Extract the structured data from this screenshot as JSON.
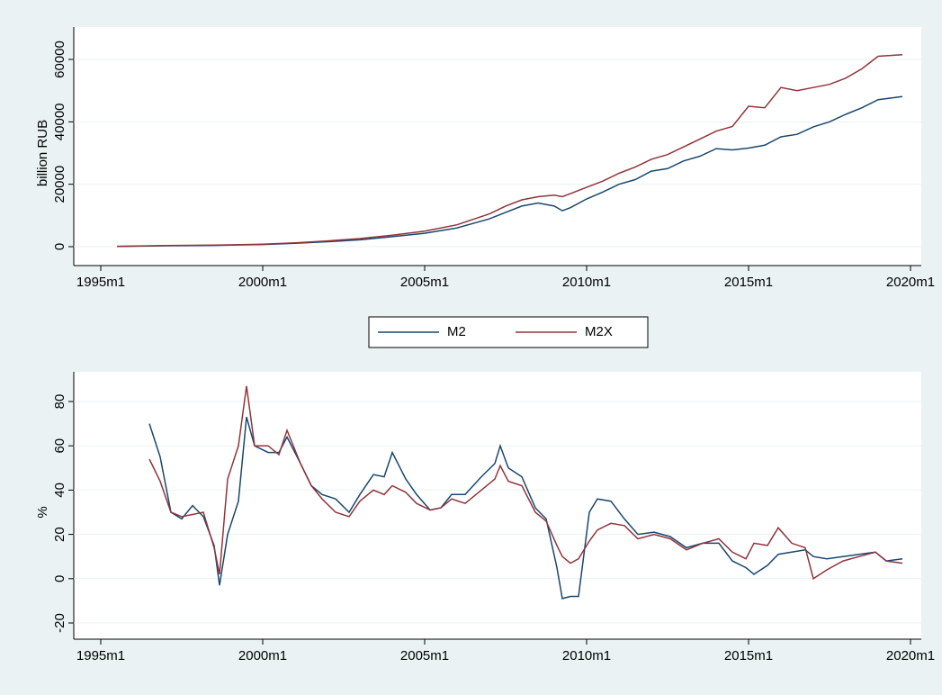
{
  "chart_data": [
    {
      "type": "line",
      "ylabel": "billion RUB",
      "x": [
        "1995m7",
        "1997m1",
        "1998m7",
        "2000m1",
        "2001m1",
        "2002m1",
        "2003m1",
        "2004m1",
        "2005m1",
        "2006m1",
        "2007m1",
        "2007m7",
        "2008m1",
        "2008m7",
        "2009m1",
        "2009m4",
        "2009m7",
        "2010m1",
        "2010m7",
        "2011m1",
        "2011m7",
        "2012m1",
        "2012m7",
        "2013m1",
        "2013m7",
        "2014m1",
        "2014m7",
        "2015m1",
        "2015m7",
        "2016m1",
        "2016m7",
        "2017m1",
        "2017m7",
        "2018m1",
        "2018m7",
        "2019m1",
        "2019m10"
      ],
      "series": [
        {
          "name": "M2",
          "color": "#1a476f",
          "values": [
            100,
            300,
            400,
            700,
            1100,
            1600,
            2200,
            3200,
            4300,
            6000,
            8900,
            11000,
            13000,
            14000,
            13000,
            11500,
            12500,
            15300,
            17500,
            20000,
            21500,
            24200,
            25000,
            27500,
            29000,
            31400,
            31000,
            31600,
            32500,
            35200,
            36000,
            38400,
            40000,
            42400,
            44500,
            47100,
            48100
          ]
        },
        {
          "name": "M2X",
          "color": "#90353b",
          "values": [
            120,
            350,
            480,
            800,
            1250,
            1850,
            2600,
            3700,
            5000,
            7000,
            10500,
            13000,
            15000,
            16000,
            16500,
            16000,
            17000,
            19000,
            21000,
            23500,
            25500,
            28000,
            29500,
            32000,
            34500,
            37000,
            38500,
            45000,
            44500,
            51000,
            50000,
            51000,
            52000,
            54000,
            57000,
            61000,
            61500
          ]
        }
      ],
      "xlim": [
        "1995m1",
        "2020m1"
      ],
      "xticks": [
        "1995m1",
        "2000m1",
        "2005m1",
        "2010m1",
        "2015m1",
        "2020m1"
      ],
      "ylim": [
        0,
        60000
      ],
      "yticks": [
        0,
        20000,
        40000,
        60000
      ],
      "grid": true
    },
    {
      "type": "line",
      "ylabel": "%",
      "x": [
        "1996m7",
        "1996m11",
        "1997m3",
        "1997m7",
        "1997m11",
        "1998m3",
        "1998m7",
        "1998m9",
        "1998m12",
        "1999m4",
        "1999m7",
        "1999m10",
        "2000m3",
        "2000m7",
        "2000m10",
        "2001m3",
        "2001m7",
        "2001m11",
        "2002m4",
        "2002m9",
        "2003m1",
        "2003m6",
        "2003m10",
        "2004m1",
        "2004m6",
        "2004m10",
        "2005m3",
        "2005m7",
        "2005m11",
        "2006m4",
        "2006m10",
        "2007m3",
        "2007m5",
        "2007m8",
        "2008m1",
        "2008m6",
        "2008m10",
        "2009m2",
        "2009m4",
        "2009m7",
        "2009m10",
        "2010m2",
        "2010m5",
        "2010m10",
        "2011m3",
        "2011m8",
        "2012m2",
        "2012m8",
        "2013m2",
        "2013m8",
        "2014m2",
        "2014m7",
        "2014m12",
        "2015m3",
        "2015m8",
        "2015m12",
        "2016m5",
        "2016m10",
        "2017m1",
        "2017m6",
        "2017m12",
        "2018m6",
        "2018m12",
        "2019m4",
        "2019m10"
      ],
      "series": [
        {
          "color": "#1a476f",
          "values": [
            70,
            55,
            30,
            27,
            33,
            28,
            15,
            -3,
            20,
            35,
            73,
            60,
            57,
            57,
            64,
            52,
            42,
            38,
            36,
            30,
            38,
            47,
            46,
            57,
            45,
            38,
            31,
            32,
            38,
            38,
            46,
            52,
            60,
            50,
            46,
            32,
            27,
            5,
            -9,
            -8,
            -8,
            30,
            36,
            35,
            27,
            20,
            21,
            19,
            14,
            16,
            16,
            8,
            5,
            2,
            6,
            11,
            12,
            13,
            10,
            9,
            10,
            11,
            12,
            8,
            9
          ]
        },
        {
          "color": "#90353b",
          "values": [
            54,
            44,
            30,
            28,
            29,
            30,
            14,
            2,
            45,
            60,
            87,
            60,
            60,
            56,
            67,
            52,
            42,
            36,
            30,
            28,
            35,
            40,
            38,
            42,
            39,
            34,
            31,
            32,
            36,
            34,
            40,
            45,
            51,
            44,
            42,
            30,
            26,
            15,
            10,
            7,
            9,
            17,
            22,
            25,
            24,
            18,
            20,
            18,
            13,
            16,
            18,
            12,
            9,
            16,
            15,
            23,
            16,
            14,
            0,
            4,
            8,
            10,
            12,
            8,
            7
          ]
        }
      ],
      "xlim": [
        "1995m1",
        "2020m1"
      ],
      "xticks": [
        "1995m1",
        "2000m1",
        "2005m1",
        "2010m1",
        "2015m1",
        "2020m1"
      ],
      "ylim": [
        -20,
        80
      ],
      "yticks": [
        -20,
        0,
        20,
        40,
        60,
        80
      ],
      "grid": true
    }
  ]
}
